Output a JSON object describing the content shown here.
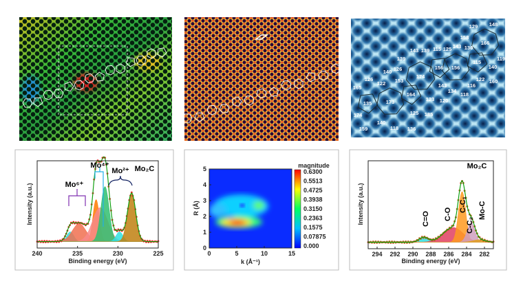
{
  "images": [
    {
      "name": "strain-map-image",
      "palette": [
        "#1a8a2a",
        "#7bd43a",
        "#e0d030",
        "#c02020",
        "#20a0c0"
      ]
    },
    {
      "name": "hrtem-lattice-image",
      "palette": [
        "#e03010",
        "#ffb020",
        "#301040"
      ]
    },
    {
      "name": "simulated-lattice-image",
      "palette": [
        "#bfe8f5",
        "#3a8fc0",
        "#0a2a5a"
      ],
      "ring_labels": [
        "129",
        "148",
        "158",
        "166",
        "143",
        "130",
        "115",
        "125",
        "143",
        "139",
        "139",
        "119",
        "115",
        "156",
        "156",
        "140",
        "126",
        "140",
        "174",
        "122",
        "160",
        "153",
        "126",
        "122",
        "143",
        "116",
        "134",
        "165",
        "164",
        "118",
        "123",
        "120",
        "135",
        "173",
        "125",
        "185",
        "174",
        "140",
        "118",
        "159",
        "136"
      ]
    }
  ],
  "chart_data": [
    {
      "type": "line",
      "title": "",
      "xlabel": "Binding energy (eV)",
      "ylabel": "Intensity (a.u.)",
      "xlim": [
        240,
        225
      ],
      "xticks": [
        "240",
        "235",
        "230",
        "225"
      ],
      "ylim": [
        -0.08,
        1.0
      ],
      "grid": false,
      "baseline": 0.0,
      "components": [
        {
          "center": 235.9,
          "height": 0.12,
          "fwhm": 1.0,
          "color": "#30e0e0"
        },
        {
          "center": 234.8,
          "height": 0.22,
          "fwhm": 2.0,
          "color": "#f07050"
        },
        {
          "center": 232.7,
          "height": 0.52,
          "fwhm": 0.9,
          "color": "#ff7a00"
        },
        {
          "center": 232.2,
          "height": 0.42,
          "fwhm": 2.2,
          "color": "#f88a8a"
        },
        {
          "center": 231.6,
          "height": 0.68,
          "fwhm": 1.2,
          "color": "#30c070"
        },
        {
          "center": 229.8,
          "height": 0.12,
          "fwhm": 1.0,
          "color": "#30e0e0"
        },
        {
          "center": 228.3,
          "height": 0.6,
          "fwhm": 1.2,
          "color": "#c08010"
        }
      ],
      "annotations": [
        {
          "text": "Mo⁶⁺",
          "color": "#8030b0"
        },
        {
          "text": "Mo⁴⁺",
          "color": "#20b0e8"
        },
        {
          "text": "Mo²⁺",
          "color": "#102060"
        },
        {
          "text": "Mo₂C",
          "color": "#e02020"
        }
      ]
    },
    {
      "type": "heatmap",
      "title": "",
      "xlabel": "k (Å⁻¹)",
      "ylabel": "R (Å)",
      "xlim": [
        0,
        15
      ],
      "ylim": [
        0,
        5
      ],
      "xticks": [
        "0",
        "5",
        "10",
        "15"
      ],
      "yticks": [
        "0",
        "1",
        "2",
        "3",
        "4",
        "5"
      ],
      "colorbar": {
        "title": "magnitude",
        "ticks": [
          "0.6300",
          "0.5513",
          "0.4725",
          "0.3938",
          "0.3150",
          "0.2363",
          "0.1575",
          "0.07875",
          "0.000"
        ],
        "colors": [
          "#ff0000",
          "#ff8000",
          "#ffff00",
          "#80ff00",
          "#00ff40",
          "#00ffc0",
          "#00c0ff",
          "#0060ff",
          "#0000ff"
        ]
      },
      "features": [
        {
          "k": 5.5,
          "R": 1.5,
          "magnitude": 0.63
        },
        {
          "k": 5.0,
          "R": 2.9,
          "magnitude": 0.18
        },
        {
          "k": 9.0,
          "R": 3.1,
          "magnitude": 0.28
        },
        {
          "k": 2.0,
          "R": 2.6,
          "magnitude": 0.15
        }
      ]
    },
    {
      "type": "line",
      "title": "",
      "xlabel": "Binding energy (eV)",
      "ylabel": "Intensity (a.u.)",
      "xlim": [
        295,
        281
      ],
      "xticks": [
        "294",
        "292",
        "290",
        "288",
        "286",
        "284",
        "282"
      ],
      "ylim": [
        -0.08,
        1.0
      ],
      "grid": false,
      "components": [
        {
          "center": 288.8,
          "height": 0.06,
          "fwhm": 1.2,
          "color": "#30e0e0"
        },
        {
          "center": 285.5,
          "height": 0.18,
          "fwhm": 2.6,
          "color": "#e04060"
        },
        {
          "center": 284.5,
          "height": 0.62,
          "fwhm": 0.95,
          "color": "#ff9a20"
        },
        {
          "center": 283.5,
          "height": 0.24,
          "fwhm": 1.0,
          "color": "#d0a0c0"
        },
        {
          "center": 282.6,
          "height": 0.03,
          "fwhm": 1.6,
          "color": "#e0a020"
        }
      ],
      "annotations": [
        {
          "text": "C=O",
          "color": "#111"
        },
        {
          "text": "C-O",
          "color": "#111"
        },
        {
          "text": "C-C₁",
          "color": "#111"
        },
        {
          "text": "C-C₂",
          "color": "#111"
        },
        {
          "text": "Mo-C",
          "color": "#111"
        },
        {
          "text": "Mo₂C",
          "color": "#e02020"
        }
      ]
    }
  ]
}
